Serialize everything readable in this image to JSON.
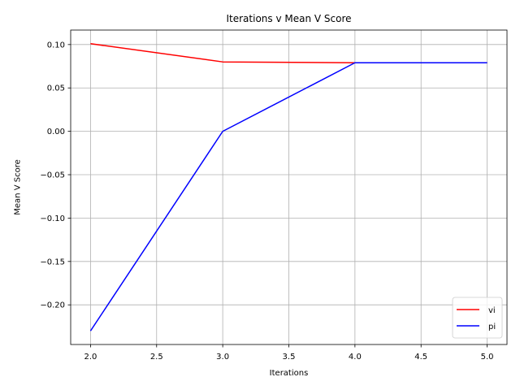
{
  "chart_data": {
    "type": "line",
    "title": "Iterations v Mean V Score",
    "xlabel": "Iterations",
    "ylabel": "Mean V Score",
    "x": [
      2,
      3,
      4,
      5
    ],
    "series": [
      {
        "name": "vi",
        "color": "#ff0000",
        "values": [
          0.101,
          0.08,
          0.079,
          0.079
        ]
      },
      {
        "name": "pi",
        "color": "#0000ff",
        "values": [
          -0.23,
          0.0,
          0.079,
          0.079
        ]
      }
    ],
    "xlim": [
      1.85,
      5.15
    ],
    "ylim": [
      -0.2457,
      0.1167
    ],
    "xticks": [
      2.0,
      2.5,
      3.0,
      3.5,
      4.0,
      4.5,
      5.0
    ],
    "xtick_labels": [
      "2.0",
      "2.5",
      "3.0",
      "3.5",
      "4.0",
      "4.5",
      "5.0"
    ],
    "yticks": [
      0.1,
      0.05,
      0.0,
      -0.05,
      -0.1,
      -0.15,
      -0.2
    ],
    "ytick_labels": [
      "0.10",
      "0.05",
      "0.00",
      "−0.05",
      "−0.10",
      "−0.15",
      "−0.20"
    ],
    "grid": true,
    "legend_position": "lower-right"
  }
}
